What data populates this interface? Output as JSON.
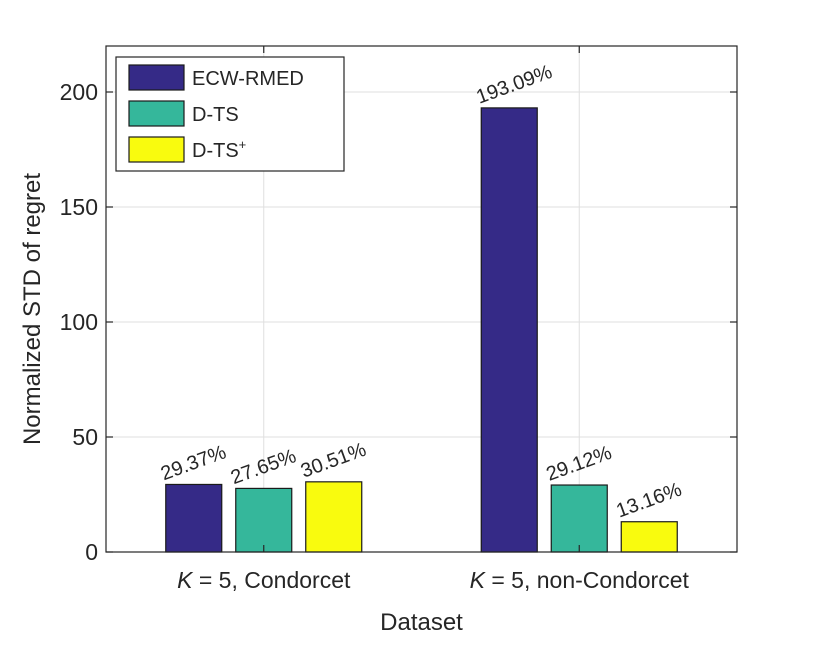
{
  "chart_data": {
    "type": "bar",
    "title": "",
    "xlabel": "Dataset",
    "ylabel": "Normalized STD of regret",
    "ylim": [
      0,
      220
    ],
    "yticks": [
      0,
      50,
      100,
      150,
      200
    ],
    "grid": true,
    "legend_position": "top-left",
    "categories": [
      {
        "italic": "K",
        "rest": " = 5, Condorcet"
      },
      {
        "italic": "K",
        "rest": " = 5, non-Condorcet"
      }
    ],
    "series": [
      {
        "name": "ECW-RMED",
        "color": "#352a87",
        "values": [
          29.37,
          193.09
        ],
        "labels": [
          "29.37%",
          "193.09%"
        ]
      },
      {
        "name": "D-TS",
        "color": "#35b79b",
        "values": [
          27.65,
          29.12
        ],
        "labels": [
          "27.65%",
          "29.12%"
        ]
      },
      {
        "name": "D-TS",
        "superscript": "+",
        "color": "#f9fb0e",
        "values": [
          30.51,
          13.16
        ],
        "labels": [
          "30.51%",
          "13.16%"
        ]
      }
    ]
  }
}
